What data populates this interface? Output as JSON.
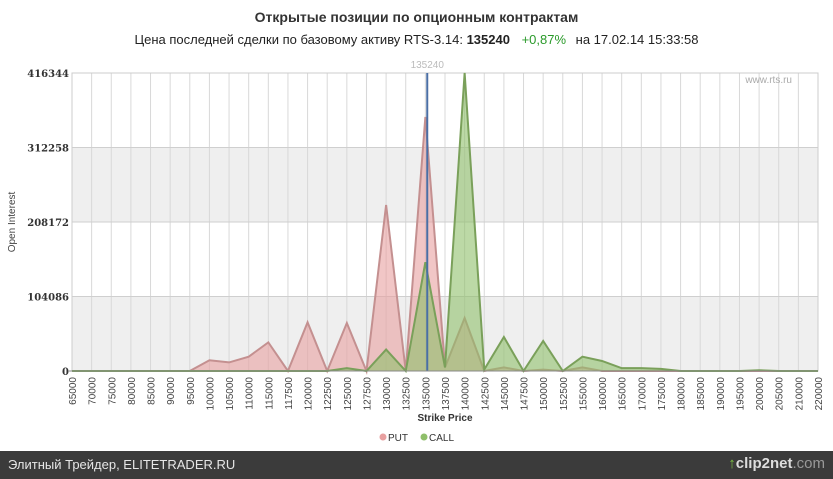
{
  "title": "Открытые позиции по опционным контрактам",
  "subtitle": {
    "prefix": "Цена последней сделки по базовому активу RTS-3.14:",
    "price": "135240",
    "change": "+0,87%",
    "time": "на 17.02.14 15:33:58"
  },
  "watermark": "www.rts.ru",
  "footer": {
    "left": "Элитный Трейдер, ELITETRADER.RU",
    "right_logo": "clip2net",
    "right_suffix": ".com"
  },
  "chart_data": {
    "type": "area",
    "xlabel": "Strike Price",
    "ylabel": "Open Interest",
    "ylim": [
      0,
      416344
    ],
    "yticks": [
      0,
      104086,
      208172,
      312258,
      416344
    ],
    "categories": [
      "65000",
      "70000",
      "75000",
      "80000",
      "85000",
      "90000",
      "95000",
      "100000",
      "105000",
      "110000",
      "115000",
      "117500",
      "120000",
      "122500",
      "125000",
      "127500",
      "130000",
      "132500",
      "135000",
      "137500",
      "140000",
      "142500",
      "145000",
      "147500",
      "150000",
      "152500",
      "155000",
      "160000",
      "165000",
      "170000",
      "175000",
      "180000",
      "185000",
      "190000",
      "195000",
      "200000",
      "205000",
      "210000",
      "220000"
    ],
    "marker": {
      "value": 135240,
      "label": "135240",
      "color": "#4a6fa5"
    },
    "series": [
      {
        "name": "PUT",
        "color": "#e8a0a0",
        "values": [
          0,
          0,
          0,
          0,
          0,
          0,
          0,
          15000,
          12000,
          20000,
          40000,
          0,
          68000,
          0,
          67000,
          0,
          232000,
          0,
          355000,
          5000,
          74000,
          0,
          5000,
          0,
          2000,
          0,
          5000,
          0,
          0,
          0,
          0,
          0,
          0,
          0,
          0,
          0,
          0,
          0,
          0
        ]
      },
      {
        "name": "CALL",
        "color": "#8fbf6a",
        "values": [
          0,
          0,
          0,
          0,
          0,
          0,
          0,
          0,
          0,
          0,
          0,
          0,
          0,
          0,
          4000,
          0,
          30000,
          0,
          152000,
          5000,
          416344,
          2000,
          47500,
          0,
          42000,
          0,
          20000,
          14000,
          4000,
          4000,
          3000,
          0,
          0,
          0,
          0,
          1000,
          0,
          0,
          0
        ]
      }
    ],
    "legend": "bottom-center"
  }
}
